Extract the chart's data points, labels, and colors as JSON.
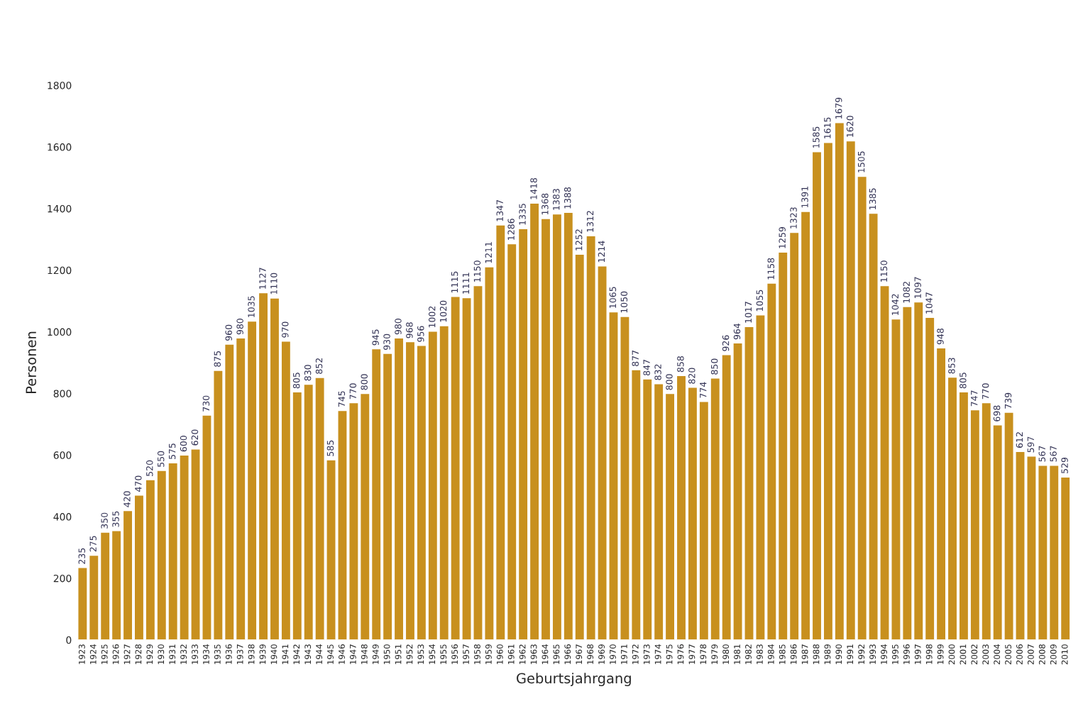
{
  "chart_data": {
    "type": "bar",
    "xlabel": "Geburtsjahrgang",
    "ylabel": "Personen",
    "categories": [
      "1923",
      "1924",
      "1925",
      "1926",
      "1927",
      "1928",
      "1929",
      "1930",
      "1931",
      "1932",
      "1933",
      "1934",
      "1935",
      "1936",
      "1937",
      "1938",
      "1939",
      "1940",
      "1941",
      "1942",
      "1943",
      "1944",
      "1945",
      "1946",
      "1947",
      "1948",
      "1949",
      "1950",
      "1951",
      "1952",
      "1953",
      "1954",
      "1955",
      "1956",
      "1957",
      "1958",
      "1959",
      "1960",
      "1961",
      "1962",
      "1963",
      "1964",
      "1965",
      "1966",
      "1967",
      "1968",
      "1969",
      "1970",
      "1971",
      "1972",
      "1973",
      "1974",
      "1975",
      "1976",
      "1977",
      "1978",
      "1979",
      "1980",
      "1981",
      "1982",
      "1983",
      "1984",
      "1985",
      "1986",
      "1987",
      "1988",
      "1989",
      "1990",
      "1991",
      "1992",
      "1993",
      "1994",
      "1995",
      "1996",
      "1997",
      "1998",
      "1999",
      "2000",
      "2001",
      "2002",
      "2003",
      "2004",
      "2005",
      "2006",
      "2007",
      "2008",
      "2009",
      "2010"
    ],
    "values": [
      235,
      275,
      350,
      355,
      420,
      470,
      520,
      550,
      575,
      600,
      620,
      730,
      875,
      960,
      980,
      1035,
      1127,
      1110,
      970,
      805,
      830,
      852,
      585,
      745,
      770,
      800,
      945,
      930,
      980,
      968,
      956,
      1002,
      1020,
      1115,
      1111,
      1150,
      1211,
      1347,
      1286,
      1335,
      1418,
      1368,
      1383,
      1388,
      1252,
      1312,
      1214,
      1065,
      1050,
      877,
      847,
      832,
      800,
      858,
      820,
      774,
      850,
      926,
      964,
      1017,
      1055,
      1158,
      1259,
      1323,
      1391,
      1585,
      1615,
      1679,
      1620,
      1505,
      1385,
      1150,
      1042,
      1082,
      1097,
      1047,
      948,
      853,
      805,
      747,
      770,
      698,
      739,
      612,
      597,
      567,
      567,
      529
    ],
    "color": "#c8901e",
    "ylim": [
      0,
      1800
    ],
    "yticks": [
      0,
      200,
      400,
      600,
      800,
      1000,
      1200,
      1400,
      1600,
      1800
    ],
    "data_labels": true
  }
}
